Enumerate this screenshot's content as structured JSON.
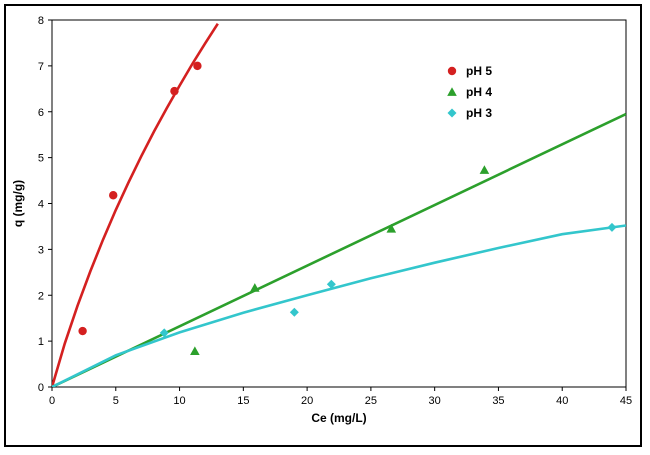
{
  "chart_data": {
    "type": "scatter",
    "title": "",
    "xlabel": "Ce (mg/L)",
    "ylabel": "q (mg/g)",
    "xlim": [
      0,
      45
    ],
    "ylim": [
      0,
      8
    ],
    "xticks": [
      0,
      5,
      10,
      15,
      20,
      25,
      30,
      35,
      40,
      45
    ],
    "yticks": [
      0,
      1,
      2,
      3,
      4,
      5,
      6,
      7,
      8
    ],
    "grid": false,
    "legend_position": "top-right",
    "series": [
      {
        "name": "pH 5",
        "color": "#d42020",
        "marker": "circle",
        "points": [
          [
            2.4,
            1.22
          ],
          [
            4.8,
            4.18
          ],
          [
            9.6,
            6.45
          ],
          [
            11.4,
            7.0
          ]
        ],
        "fit_curve": [
          [
            0,
            0
          ],
          [
            1,
            0.95
          ],
          [
            2,
            1.77
          ],
          [
            3,
            2.52
          ],
          [
            4,
            3.21
          ],
          [
            5,
            3.86
          ],
          [
            6,
            4.46
          ],
          [
            7,
            5.03
          ],
          [
            8,
            5.57
          ],
          [
            9,
            6.08
          ],
          [
            10,
            6.57
          ],
          [
            11,
            7.04
          ],
          [
            12,
            7.49
          ],
          [
            13,
            7.92
          ]
        ]
      },
      {
        "name": "pH 4",
        "color": "#2ca02c",
        "marker": "triangle",
        "points": [
          [
            11.2,
            0.78
          ],
          [
            15.9,
            2.16
          ],
          [
            26.6,
            3.45
          ],
          [
            33.9,
            4.73
          ]
        ],
        "fit_curve": [
          [
            0,
            0
          ],
          [
            45,
            5.95
          ]
        ]
      },
      {
        "name": "pH 3",
        "color": "#33c6cc",
        "marker": "diamond",
        "points": [
          [
            8.8,
            1.18
          ],
          [
            19.0,
            1.63
          ],
          [
            21.9,
            2.24
          ],
          [
            43.9,
            3.48
          ]
        ],
        "fit_curve": [
          [
            0,
            0
          ],
          [
            5,
            0.69
          ],
          [
            10,
            1.19
          ],
          [
            15,
            1.62
          ],
          [
            20,
            2.0
          ],
          [
            25,
            2.37
          ],
          [
            30,
            2.71
          ],
          [
            35,
            3.03
          ],
          [
            40,
            3.33
          ],
          [
            45,
            3.52
          ]
        ]
      }
    ]
  }
}
